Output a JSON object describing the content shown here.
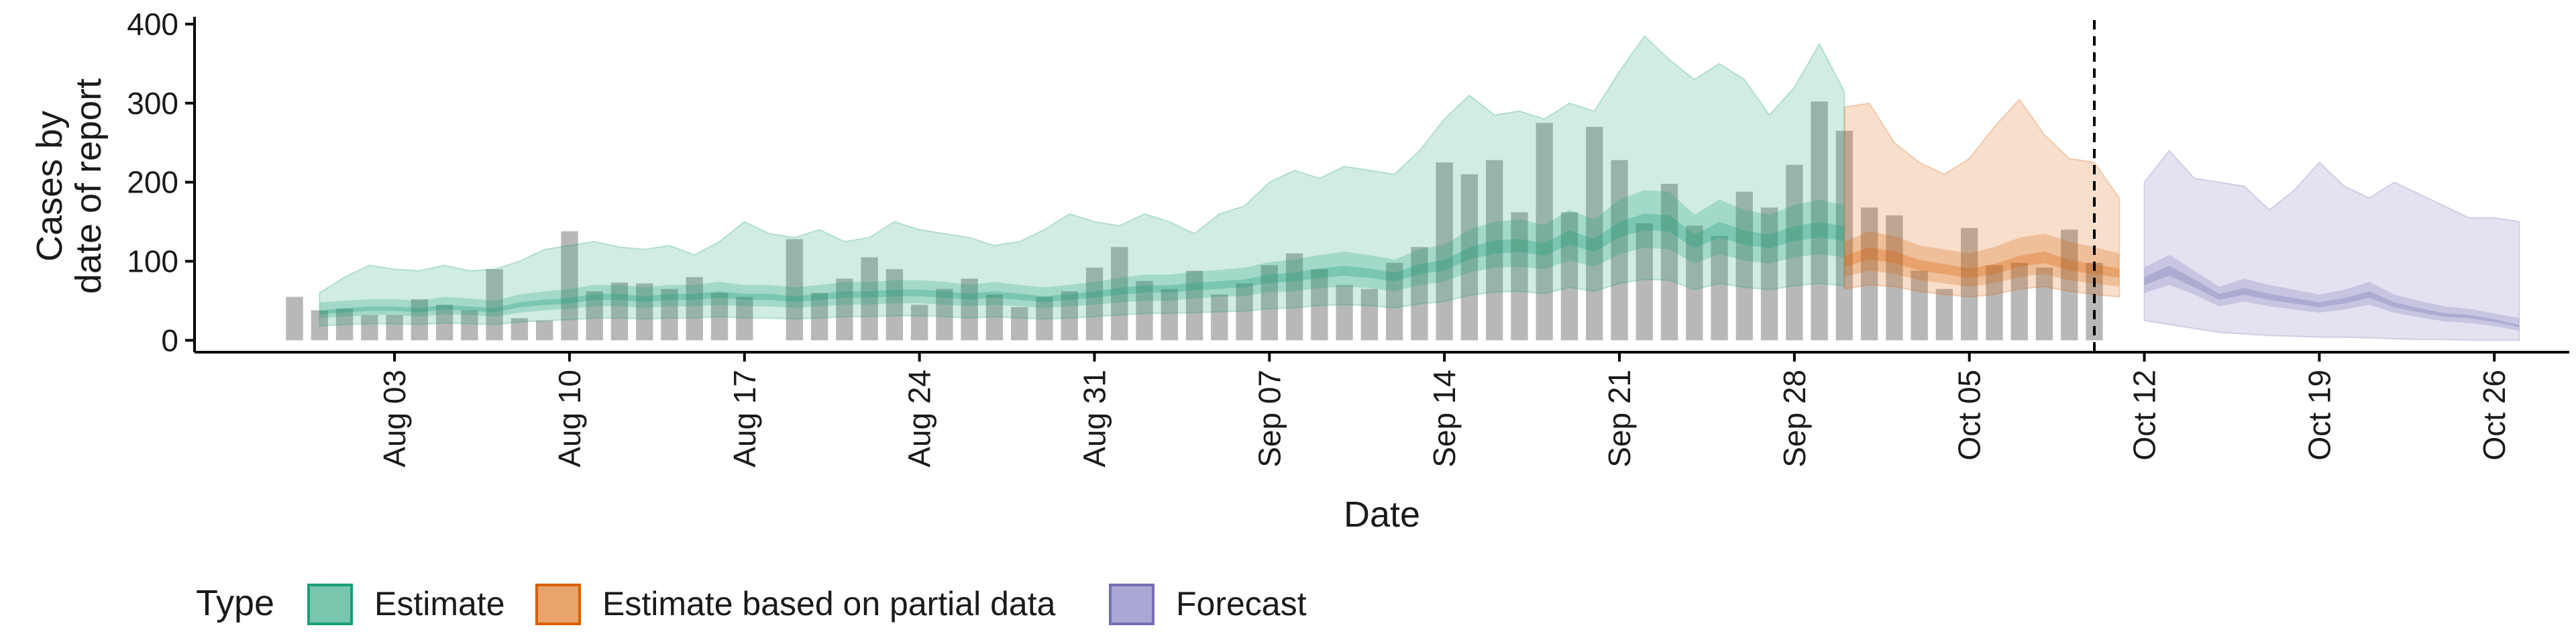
{
  "chart_data": {
    "type": "area",
    "xlabel": "Date",
    "ylabel_lines": [
      "Cases by",
      "date of report"
    ],
    "x_axis_domain": [
      "2020-07-26",
      "2020-10-29"
    ],
    "ylim": [
      -15,
      405
    ],
    "yticks": [
      0,
      100,
      200,
      300,
      400
    ],
    "xticks": [
      {
        "date": "2020-08-03",
        "label": "Aug 03"
      },
      {
        "date": "2020-08-10",
        "label": "Aug 10"
      },
      {
        "date": "2020-08-17",
        "label": "Aug 17"
      },
      {
        "date": "2020-08-24",
        "label": "Aug 24"
      },
      {
        "date": "2020-08-31",
        "label": "Aug 31"
      },
      {
        "date": "2020-09-07",
        "label": "Sep 07"
      },
      {
        "date": "2020-09-14",
        "label": "Sep 14"
      },
      {
        "date": "2020-09-21",
        "label": "Sep 21"
      },
      {
        "date": "2020-09-28",
        "label": "Sep 28"
      },
      {
        "date": "2020-10-05",
        "label": "Oct 05"
      },
      {
        "date": "2020-10-12",
        "label": "Oct 12"
      },
      {
        "date": "2020-10-19",
        "label": "Oct 19"
      },
      {
        "date": "2020-10-26",
        "label": "Oct 26"
      }
    ],
    "vline_date": "2020-10-10",
    "bars": {
      "start_date": "2020-07-30",
      "color": "#a6a6a6",
      "values": [
        55,
        38,
        40,
        32,
        32,
        52,
        45,
        38,
        90,
        28,
        25,
        138,
        62,
        73,
        72,
        65,
        80,
        60,
        55,
        0,
        128,
        60,
        78,
        105,
        90,
        45,
        65,
        78,
        58,
        42,
        55,
        62,
        92,
        118,
        75,
        65,
        88,
        58,
        72,
        95,
        110,
        90,
        70,
        65,
        98,
        118,
        225,
        210,
        228,
        162,
        275,
        162,
        270,
        228,
        148,
        198,
        145,
        132,
        188,
        168,
        222,
        302,
        265,
        168,
        158,
        88,
        65,
        142,
        95,
        98,
        92,
        140,
        98
      ]
    },
    "series": [
      {
        "name": "Estimate",
        "color": "#1b9e77",
        "start_date": "2020-07-31",
        "median": [
          35,
          38,
          40,
          40,
          38,
          42,
          40,
          38,
          45,
          48,
          50,
          55,
          55,
          52,
          55,
          55,
          58,
          55,
          55,
          52,
          55,
          58,
          58,
          60,
          60,
          58,
          55,
          58,
          55,
          52,
          55,
          58,
          62,
          65,
          65,
          68,
          70,
          72,
          78,
          80,
          85,
          88,
          85,
          80,
          90,
          95,
          110,
          118,
          120,
          115,
          130,
          120,
          140,
          150,
          148,
          125,
          140,
          130,
          125,
          135,
          140,
          135
        ],
        "inner": [
          [
            28,
            48
          ],
          [
            30,
            50
          ],
          [
            32,
            52
          ],
          [
            32,
            52
          ],
          [
            30,
            50
          ],
          [
            33,
            55
          ],
          [
            32,
            53
          ],
          [
            30,
            50
          ],
          [
            35,
            58
          ],
          [
            38,
            62
          ],
          [
            40,
            65
          ],
          [
            43,
            70
          ],
          [
            43,
            70
          ],
          [
            41,
            67
          ],
          [
            43,
            70
          ],
          [
            43,
            70
          ],
          [
            45,
            74
          ],
          [
            43,
            70
          ],
          [
            43,
            70
          ],
          [
            41,
            67
          ],
          [
            43,
            70
          ],
          [
            45,
            74
          ],
          [
            45,
            74
          ],
          [
            47,
            76
          ],
          [
            47,
            76
          ],
          [
            45,
            74
          ],
          [
            43,
            70
          ],
          [
            45,
            74
          ],
          [
            43,
            70
          ],
          [
            41,
            67
          ],
          [
            43,
            70
          ],
          [
            45,
            74
          ],
          [
            48,
            79
          ],
          [
            50,
            83
          ],
          [
            50,
            83
          ],
          [
            53,
            87
          ],
          [
            55,
            89
          ],
          [
            56,
            92
          ],
          [
            61,
            99
          ],
          [
            62,
            102
          ],
          [
            66,
            108
          ],
          [
            68,
            112
          ],
          [
            66,
            108
          ],
          [
            62,
            102
          ],
          [
            70,
            115
          ],
          [
            74,
            121
          ],
          [
            86,
            140
          ],
          [
            92,
            150
          ],
          [
            93,
            153
          ],
          [
            90,
            146
          ],
          [
            101,
            165
          ],
          [
            93,
            153
          ],
          [
            109,
            178
          ],
          [
            117,
            190
          ],
          [
            115,
            188
          ],
          [
            97,
            159
          ],
          [
            109,
            178
          ],
          [
            101,
            165
          ],
          [
            97,
            159
          ],
          [
            105,
            171
          ],
          [
            109,
            178
          ],
          [
            105,
            171
          ]
        ],
        "outer": [
          [
            18,
            60
          ],
          [
            20,
            80
          ],
          [
            21,
            95
          ],
          [
            21,
            90
          ],
          [
            20,
            88
          ],
          [
            22,
            95
          ],
          [
            21,
            88
          ],
          [
            20,
            90
          ],
          [
            23,
            100
          ],
          [
            25,
            115
          ],
          [
            26,
            120
          ],
          [
            28,
            125
          ],
          [
            28,
            118
          ],
          [
            27,
            115
          ],
          [
            28,
            120
          ],
          [
            28,
            108
          ],
          [
            30,
            125
          ],
          [
            28,
            150
          ],
          [
            28,
            135
          ],
          [
            27,
            130
          ],
          [
            28,
            140
          ],
          [
            30,
            125
          ],
          [
            30,
            130
          ],
          [
            31,
            150
          ],
          [
            31,
            140
          ],
          [
            30,
            135
          ],
          [
            28,
            130
          ],
          [
            30,
            120
          ],
          [
            28,
            125
          ],
          [
            27,
            140
          ],
          [
            28,
            160
          ],
          [
            30,
            150
          ],
          [
            32,
            145
          ],
          [
            34,
            160
          ],
          [
            34,
            150
          ],
          [
            35,
            135
          ],
          [
            36,
            160
          ],
          [
            37,
            170
          ],
          [
            40,
            200
          ],
          [
            41,
            215
          ],
          [
            44,
            205
          ],
          [
            45,
            220
          ],
          [
            44,
            215
          ],
          [
            41,
            210
          ],
          [
            46,
            240
          ],
          [
            49,
            280
          ],
          [
            57,
            310
          ],
          [
            61,
            285
          ],
          [
            62,
            290
          ],
          [
            59,
            280
          ],
          [
            67,
            300
          ],
          [
            62,
            290
          ],
          [
            72,
            340
          ],
          [
            77,
            385
          ],
          [
            76,
            355
          ],
          [
            64,
            330
          ],
          [
            72,
            350
          ],
          [
            67,
            330
          ],
          [
            64,
            285
          ],
          [
            69,
            320
          ],
          [
            72,
            375
          ],
          [
            69,
            315
          ]
        ]
      },
      {
        "name": "Estimate based on partial data",
        "color": "#d95f02",
        "start_date": "2020-09-30",
        "median": [
          100,
          110,
          105,
          95,
          90,
          85,
          90,
          100,
          105,
          95,
          90,
          85
        ],
        "inner": [
          [
            80,
            125
          ],
          [
            88,
            138
          ],
          [
            84,
            132
          ],
          [
            76,
            120
          ],
          [
            72,
            115
          ],
          [
            68,
            110
          ],
          [
            72,
            118
          ],
          [
            80,
            130
          ],
          [
            84,
            135
          ],
          [
            76,
            125
          ],
          [
            72,
            118
          ],
          [
            68,
            110
          ]
        ],
        "outer": [
          [
            65,
            295
          ],
          [
            70,
            300
          ],
          [
            68,
            250
          ],
          [
            62,
            225
          ],
          [
            58,
            210
          ],
          [
            55,
            230
          ],
          [
            58,
            270
          ],
          [
            65,
            305
          ],
          [
            68,
            260
          ],
          [
            62,
            230
          ],
          [
            58,
            225
          ],
          [
            55,
            180
          ]
        ]
      },
      {
        "name": "Forecast",
        "color": "#7570b3",
        "start_date": "2020-10-12",
        "median": [
          75,
          88,
          72,
          55,
          62,
          55,
          50,
          45,
          50,
          58,
          45,
          38,
          32,
          30,
          25,
          18
        ],
        "inner": [
          [
            60,
            92
          ],
          [
            70,
            108
          ],
          [
            58,
            88
          ],
          [
            43,
            68
          ],
          [
            49,
            78
          ],
          [
            43,
            70
          ],
          [
            39,
            64
          ],
          [
            35,
            58
          ],
          [
            39,
            64
          ],
          [
            45,
            74
          ],
          [
            35,
            58
          ],
          [
            29,
            50
          ],
          [
            24,
            43
          ],
          [
            22,
            40
          ],
          [
            18,
            34
          ],
          [
            12,
            28
          ]
        ],
        "outer": [
          [
            25,
            200
          ],
          [
            20,
            240
          ],
          [
            15,
            205
          ],
          [
            10,
            200
          ],
          [
            8,
            195
          ],
          [
            6,
            165
          ],
          [
            5,
            190
          ],
          [
            4,
            225
          ],
          [
            4,
            195
          ],
          [
            3,
            180
          ],
          [
            2,
            200
          ],
          [
            1,
            185
          ],
          [
            1,
            170
          ],
          [
            0,
            155
          ],
          [
            0,
            155
          ],
          [
            0,
            150
          ]
        ]
      }
    ],
    "legend": {
      "title": "Type",
      "position": "bottom",
      "entries": [
        {
          "name": "Estimate",
          "fill": "#77c6ad",
          "border": "#1b9e77"
        },
        {
          "name": "Estimate based on partial data",
          "fill": "#e8a46a",
          "border": "#d95f02"
        },
        {
          "name": "Forecast",
          "fill": "#aaa7d4",
          "border": "#7570b3"
        }
      ]
    }
  }
}
